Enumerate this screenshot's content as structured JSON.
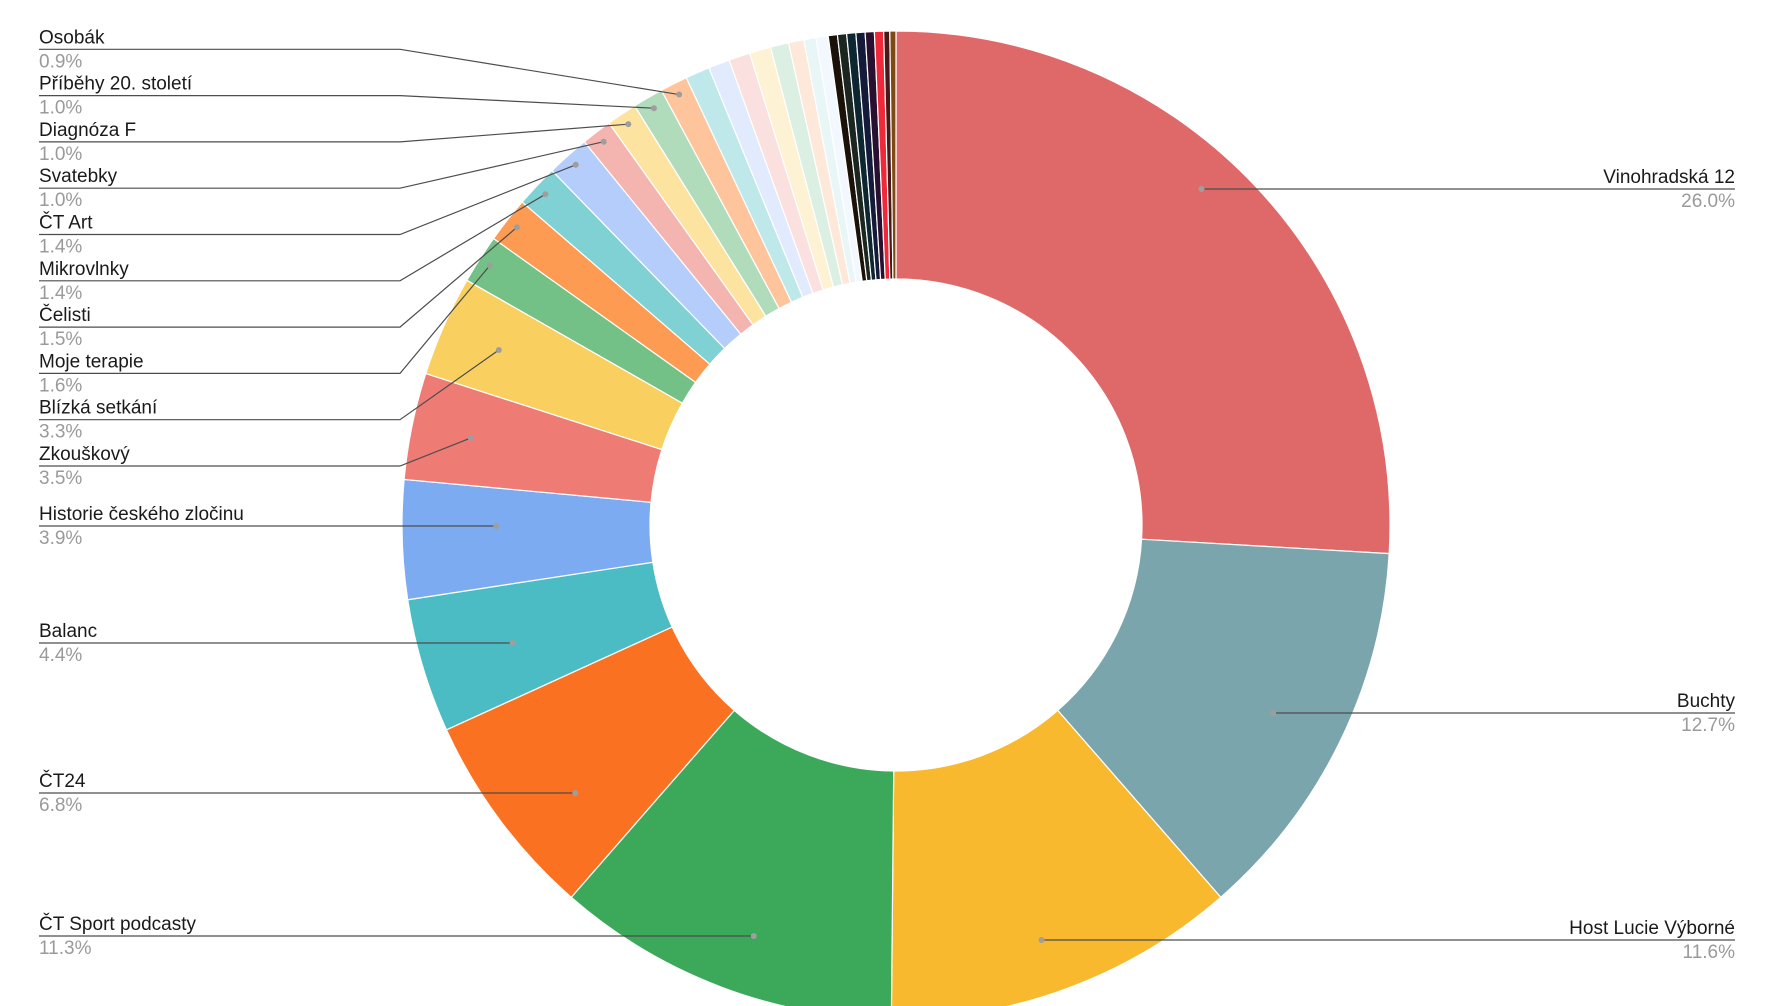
{
  "chart_data": {
    "type": "pie",
    "subtype": "donut",
    "labeled_slices": [
      {
        "label": "Vinohradská 12",
        "percent": "26.0%",
        "value": 26.0,
        "color": "#df6868"
      },
      {
        "label": "Buchty",
        "percent": "12.7%",
        "value": 12.7,
        "color": "#7ba5ad"
      },
      {
        "label": "Host Lucie Výborné",
        "percent": "11.6%",
        "value": 11.6,
        "color": "#f8b92e"
      },
      {
        "label": "ČT Sport podcasty",
        "percent": "11.3%",
        "value": 11.3,
        "color": "#3ca85a"
      },
      {
        "label": "ČT24",
        "percent": "6.8%",
        "value": 6.8,
        "color": "#fb7122"
      },
      {
        "label": "Balanc",
        "percent": "4.4%",
        "value": 4.4,
        "color": "#4bbcc3"
      },
      {
        "label": "Historie českého zločinu",
        "percent": "3.9%",
        "value": 3.9,
        "color": "#7dabf2"
      },
      {
        "label": "Zkouškový",
        "percent": "3.5%",
        "value": 3.5,
        "color": "#ee7b74"
      },
      {
        "label": "Blízká setkání",
        "percent": "3.3%",
        "value": 3.3,
        "color": "#f9d060"
      },
      {
        "label": "Moje terapie",
        "percent": "1.6%",
        "value": 1.6,
        "color": "#74c188"
      },
      {
        "label": "Čelisti",
        "percent": "1.5%",
        "value": 1.5,
        "color": "#fd9b52"
      },
      {
        "label": "Mikrovlnky",
        "percent": "1.4%",
        "value": 1.4,
        "color": "#80d1d4"
      },
      {
        "label": "ČT Art",
        "percent": "1.4%",
        "value": 1.4,
        "color": "#b5cdfa"
      },
      {
        "label": "Svatebky",
        "percent": "1.0%",
        "value": 1.0,
        "color": "#f4b4b0"
      },
      {
        "label": "Diagnóza F",
        "percent": "1.0%",
        "value": 1.0,
        "color": "#fce3a0"
      },
      {
        "label": "Příběhy 20. století",
        "percent": "1.0%",
        "value": 1.0,
        "color": "#b0dcbc"
      },
      {
        "label": "Osobák",
        "percent": "0.9%",
        "value": 0.9,
        "color": "#fec49b"
      }
    ],
    "unlabeled_slices": [
      {
        "value": 0.8,
        "color": "#bfe8ea"
      },
      {
        "value": 0.7,
        "color": "#e1ebfd"
      },
      {
        "value": 0.7,
        "color": "#fae0de"
      },
      {
        "value": 0.7,
        "color": "#fdf2d4"
      },
      {
        "value": 0.6,
        "color": "#dcefe3"
      },
      {
        "value": 0.5,
        "color": "#fee8d9"
      },
      {
        "value": 0.4,
        "color": "#e8f6f7"
      },
      {
        "value": 0.4,
        "color": "#f3f7fe"
      },
      {
        "value": 0.3,
        "color": "#1a1209"
      },
      {
        "value": 0.3,
        "color": "#1b2621"
      },
      {
        "value": 0.3,
        "color": "#0d2732"
      },
      {
        "value": 0.3,
        "color": "#141a3a"
      },
      {
        "value": 0.3,
        "color": "#2a1030"
      },
      {
        "value": 0.3,
        "color": "#f0293a"
      },
      {
        "value": 0.2,
        "color": "#4a1818"
      },
      {
        "value": 0.2,
        "color": "#7c4a14"
      }
    ],
    "legend": "none",
    "start_angle_deg": 0,
    "direction": "clockwise"
  }
}
